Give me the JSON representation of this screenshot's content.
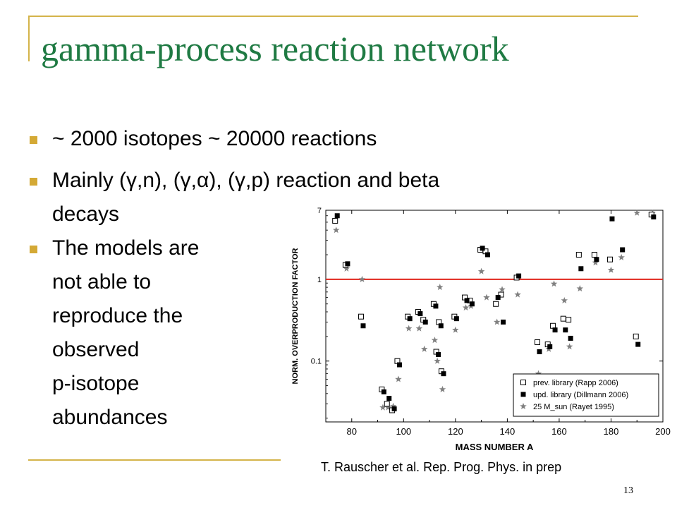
{
  "slide": {
    "title": "gamma-process reaction network",
    "page_number": "13",
    "citation": "T. Rauscher et al. Rep. Prog. Phys. in prep",
    "accent_color": "#d4b44a",
    "title_color": "#1f7a43",
    "bullet_color": "#d4a935"
  },
  "bullets": [
    {
      "lines": [
        "~ 2000 isotopes ~ 20000 reactions"
      ]
    },
    {
      "lines": [
        "Mainly (γ,n), (γ,α), (γ,p) reaction and beta",
        "decays"
      ]
    },
    {
      "lines": [
        "The models are",
        "not able to",
        "reproduce the",
        "observed",
        "p-isotope",
        "abundances"
      ]
    }
  ],
  "chart_data": {
    "type": "scatter",
    "xlabel": "MASS NUMBER A",
    "ylabel": "NORM. OVERPRODUCTION FACTOR",
    "y_scale": "log",
    "xlim": [
      70,
      200
    ],
    "ylim": [
      0.018,
      7
    ],
    "x_ticks": [
      80,
      100,
      120,
      140,
      160,
      180,
      200
    ],
    "y_ticks": [
      {
        "value": 0.1,
        "label": "0.1"
      },
      {
        "value": 1,
        "label": "1"
      },
      {
        "value": 7,
        "label": "7"
      }
    ],
    "reference_line": {
      "y": 1,
      "color": "#e0241b"
    },
    "legend_position": "bottom-right",
    "series": [
      {
        "name": "prev. library (Rapp 2006)",
        "marker": "open-square",
        "color": "#000000",
        "points": [
          [
            74,
            5.2
          ],
          [
            78,
            1.5
          ],
          [
            84,
            0.35
          ],
          [
            92,
            0.045
          ],
          [
            94,
            0.03
          ],
          [
            96,
            0.025
          ],
          [
            98,
            0.1
          ],
          [
            102,
            0.35
          ],
          [
            106,
            0.4
          ],
          [
            108,
            0.32
          ],
          [
            112,
            0.5
          ],
          [
            113,
            0.13
          ],
          [
            114,
            0.3
          ],
          [
            115,
            0.075
          ],
          [
            120,
            0.35
          ],
          [
            124,
            0.6
          ],
          [
            126,
            0.55
          ],
          [
            130,
            2.3
          ],
          [
            132,
            2.2
          ],
          [
            136,
            0.5
          ],
          [
            138,
            0.65
          ],
          [
            144,
            1.05
          ],
          [
            152,
            0.17
          ],
          [
            156,
            0.16
          ],
          [
            158,
            0.27
          ],
          [
            162,
            0.33
          ],
          [
            164,
            0.32
          ],
          [
            168,
            2.0
          ],
          [
            174,
            2.0
          ],
          [
            180,
            1.75
          ],
          [
            190,
            0.2
          ],
          [
            196,
            6.2
          ]
        ]
      },
      {
        "name": "upd. library (Dillmann 2006)",
        "marker": "filled-square",
        "color": "#000000",
        "points": [
          [
            74,
            6.0
          ],
          [
            78,
            1.55
          ],
          [
            84,
            0.27
          ],
          [
            92,
            0.042
          ],
          [
            94,
            0.035
          ],
          [
            96,
            0.026
          ],
          [
            98,
            0.09
          ],
          [
            102,
            0.33
          ],
          [
            106,
            0.38
          ],
          [
            108,
            0.3
          ],
          [
            112,
            0.47
          ],
          [
            113,
            0.12
          ],
          [
            114,
            0.27
          ],
          [
            115,
            0.07
          ],
          [
            120,
            0.33
          ],
          [
            124,
            0.55
          ],
          [
            126,
            0.5
          ],
          [
            130,
            2.4
          ],
          [
            132,
            2.0
          ],
          [
            136,
            0.6
          ],
          [
            138,
            0.3
          ],
          [
            144,
            1.1
          ],
          [
            152,
            0.13
          ],
          [
            156,
            0.15
          ],
          [
            158,
            0.24
          ],
          [
            162,
            0.24
          ],
          [
            164,
            0.19
          ],
          [
            168,
            1.35
          ],
          [
            174,
            1.75
          ],
          [
            180,
            5.5
          ],
          [
            184,
            2.3
          ],
          [
            190,
            0.16
          ],
          [
            196,
            5.8
          ]
        ]
      },
      {
        "name": "25 M_sun (Rayet 1995)",
        "marker": "star",
        "color": "#808080",
        "points": [
          [
            74,
            4.0
          ],
          [
            78,
            1.35
          ],
          [
            84,
            1.0
          ],
          [
            92,
            0.027
          ],
          [
            94,
            0.027
          ],
          [
            96,
            0.028
          ],
          [
            98,
            0.06
          ],
          [
            102,
            0.25
          ],
          [
            106,
            0.25
          ],
          [
            108,
            0.14
          ],
          [
            112,
            0.18
          ],
          [
            113,
            0.1
          ],
          [
            114,
            0.8
          ],
          [
            115,
            0.045
          ],
          [
            120,
            0.24
          ],
          [
            124,
            0.45
          ],
          [
            126,
            0.47
          ],
          [
            130,
            1.25
          ],
          [
            132,
            0.6
          ],
          [
            136,
            0.3
          ],
          [
            138,
            0.75
          ],
          [
            144,
            0.65
          ],
          [
            152,
            0.07
          ],
          [
            156,
            0.14
          ],
          [
            158,
            0.88
          ],
          [
            162,
            0.55
          ],
          [
            164,
            0.15
          ],
          [
            168,
            0.77
          ],
          [
            174,
            1.6
          ],
          [
            180,
            1.3
          ],
          [
            184,
            1.85
          ],
          [
            190,
            6.5
          ],
          [
            196,
            6.5
          ]
        ]
      }
    ]
  }
}
